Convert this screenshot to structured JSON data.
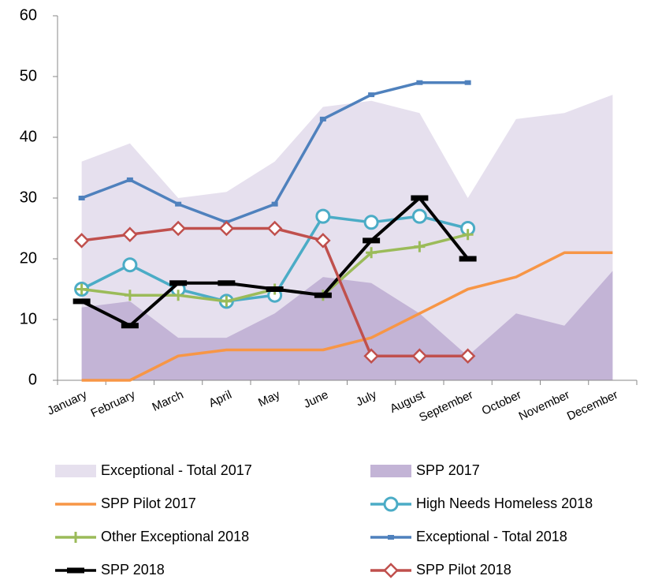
{
  "chart_data": {
    "type": "line",
    "categories": [
      "January",
      "February",
      "March",
      "April",
      "May",
      "June",
      "July",
      "August",
      "September",
      "October",
      "November",
      "December"
    ],
    "ylim": [
      0,
      60
    ],
    "yticks": [
      0,
      10,
      20,
      30,
      40,
      50,
      60
    ],
    "grid": false,
    "series": [
      {
        "name": "Exceptional - Total 2017",
        "kind": "area",
        "color": "#e6e0ee",
        "values": [
          36,
          39,
          30,
          31,
          36,
          45,
          46,
          44,
          30,
          43,
          44,
          47
        ]
      },
      {
        "name": "SPP 2017",
        "kind": "area",
        "color": "#c3b4d6",
        "values": [
          12,
          13,
          7,
          7,
          11,
          17,
          16,
          11,
          4,
          11,
          9,
          18
        ]
      },
      {
        "name": "SPP Pilot 2017",
        "kind": "line",
        "marker": "none",
        "color": "#f79646",
        "values": [
          0,
          0,
          4,
          5,
          5,
          5,
          7,
          11,
          15,
          17,
          21,
          21
        ]
      },
      {
        "name": "High Needs Homeless 2018",
        "kind": "line",
        "marker": "circle",
        "color": "#4bacc6",
        "values": [
          15,
          19,
          15,
          13,
          14,
          27,
          26,
          27,
          25,
          null,
          null,
          null
        ]
      },
      {
        "name": "Other Exceptional 2018",
        "kind": "line",
        "marker": "plus",
        "color": "#9bbb59",
        "values": [
          15,
          14,
          14,
          13,
          15,
          14,
          21,
          22,
          24,
          null,
          null,
          null
        ]
      },
      {
        "name": "Exceptional - Total 2018",
        "kind": "line",
        "marker": "square",
        "color": "#4f81bd",
        "values": [
          30,
          33,
          29,
          26,
          29,
          43,
          47,
          49,
          49,
          null,
          null,
          null
        ]
      },
      {
        "name": "SPP 2018",
        "kind": "line",
        "marker": "dash",
        "color": "#000000",
        "values": [
          13,
          9,
          16,
          16,
          15,
          14,
          23,
          30,
          20,
          null,
          null,
          null
        ]
      },
      {
        "name": "SPP Pilot 2018",
        "kind": "line",
        "marker": "diamond",
        "color": "#c0504d",
        "values": [
          23,
          24,
          25,
          25,
          25,
          23,
          4,
          4,
          4,
          null,
          null,
          null
        ]
      }
    ]
  }
}
